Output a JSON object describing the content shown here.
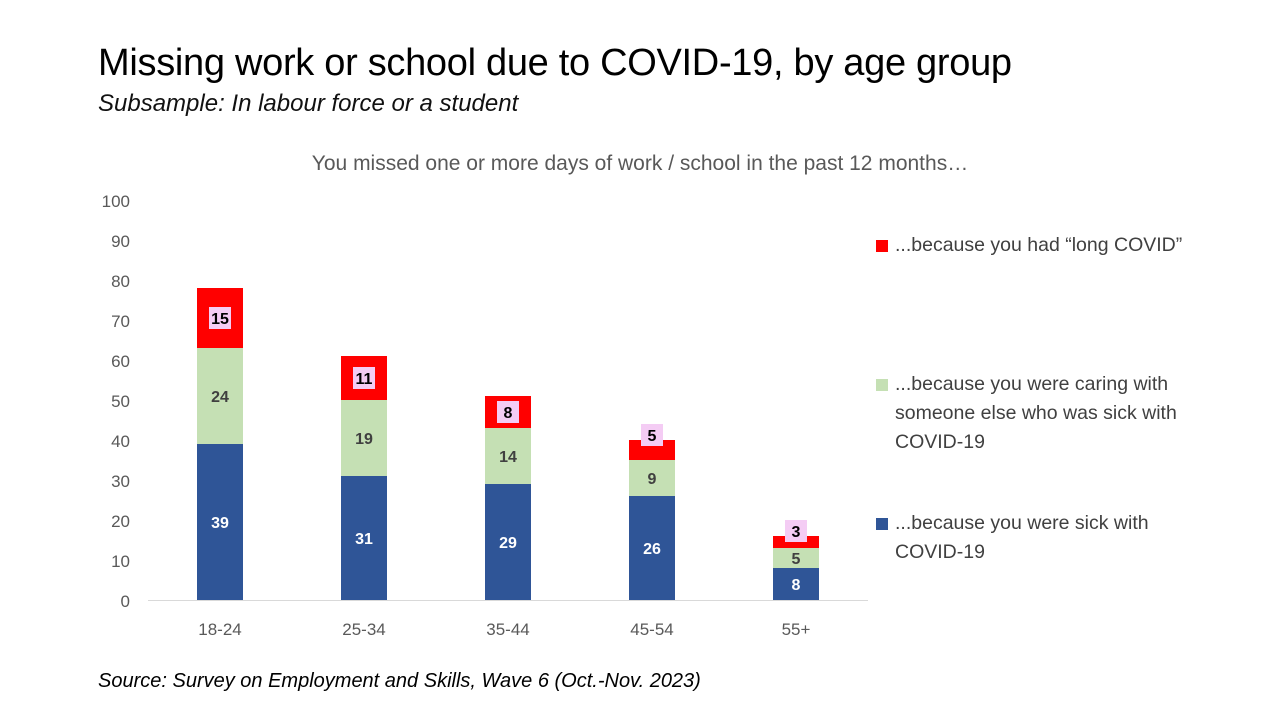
{
  "title": "Missing work or school due to COVID-19, by age group",
  "subtitle": "Subsample: In labour force or a student",
  "source": "Source: Survey on Employment and Skills, Wave 6 (Oct.-Nov. 2023)",
  "chart_data": {
    "type": "bar",
    "stacked": true,
    "title": "You missed one or more days of work / school in the past 12 months…",
    "categories": [
      "18-24",
      "25-34",
      "35-44",
      "45-54",
      "55+"
    ],
    "ylim": [
      0,
      100
    ],
    "yticks": [
      0,
      10,
      20,
      30,
      40,
      50,
      60,
      70,
      80,
      90,
      100
    ],
    "ytick_labels": [
      "0",
      "10",
      "20",
      "30",
      "40",
      "50",
      "60",
      "70",
      "80",
      "90",
      "100"
    ],
    "grid": false,
    "legend_position": "right",
    "series": [
      {
        "name": "...because you were sick with COVID-19",
        "values": [
          39,
          31,
          29,
          26,
          8
        ],
        "color": "#2F5597",
        "label_color": "#ffffff"
      },
      {
        "name": "...because you were caring with someone else who was sick with COVID-19",
        "values": [
          24,
          19,
          14,
          9,
          5
        ],
        "color": "#C5E0B4",
        "label_color": "#404040"
      },
      {
        "name": "...because you had “long COVID”",
        "values": [
          15,
          11,
          8,
          5,
          3
        ],
        "color": "#FF0000",
        "label_color": "#000000",
        "label_background": "#F4CCF4"
      }
    ],
    "legend_order": [
      2,
      1,
      0
    ]
  }
}
